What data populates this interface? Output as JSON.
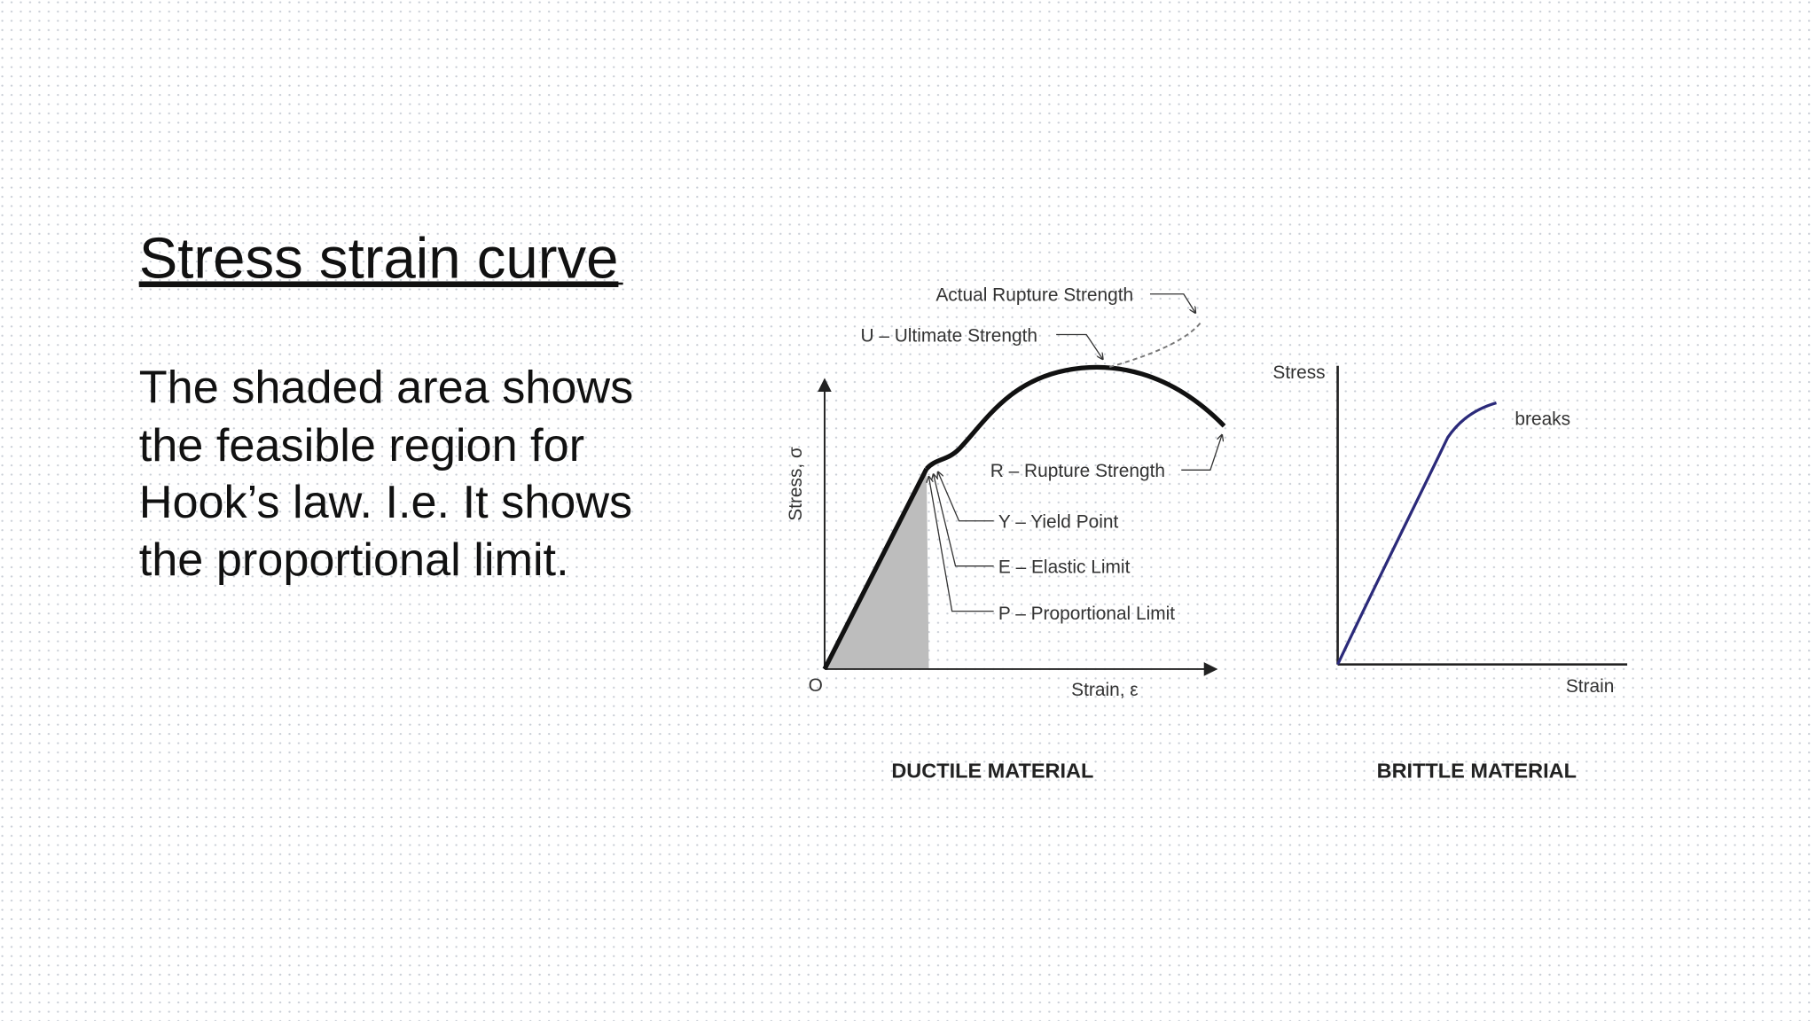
{
  "slide": {
    "title": "Stress strain curve",
    "body_lines": [
      "The shaded area shows",
      "the feasible region for",
      "Hook’s law. I.e. It shows",
      "the proportional limit."
    ],
    "ductile": {
      "y_axis_label": "Stress, σ",
      "x_axis_label": "Strain, ε",
      "origin_label": "O",
      "annotations": [
        "Actual Rupture Strength",
        "U – Ultimate Strength",
        "R – Rupture Strength",
        "Y – Yield Point",
        "E – Elastic Limit",
        "P – Proportional Limit"
      ],
      "caption": "DUCTILE MATERIAL"
    },
    "brittle": {
      "y_axis_label": "Stress",
      "x_axis_label": "Strain",
      "annotation": "breaks",
      "caption": "BRITTLE MATERIAL"
    }
  }
}
